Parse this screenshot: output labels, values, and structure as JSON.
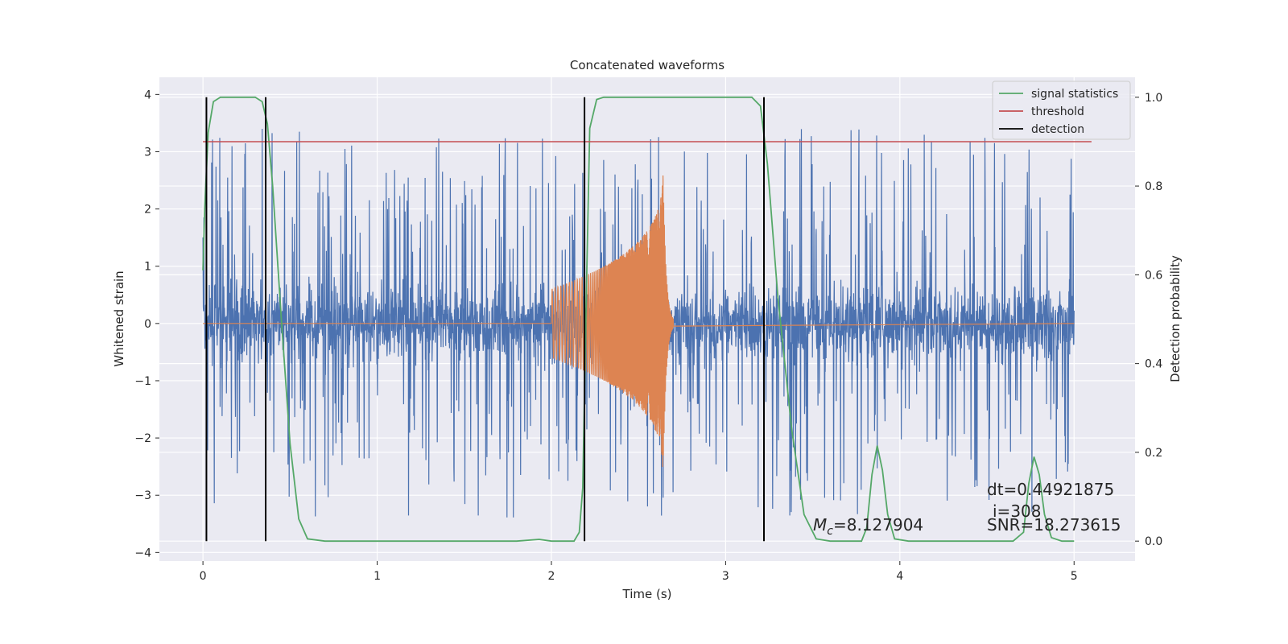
{
  "chart_data": {
    "type": "line",
    "title": "Concatenated waveforms",
    "xlabel": "Time (s)",
    "ylabel": "Whitened strain",
    "y2label": "Detection probability",
    "xlim": [
      -0.25,
      5.35
    ],
    "ylim": [
      -4.15,
      4.3
    ],
    "y2lim": [
      -0.045,
      1.045
    ],
    "x_ticks": [
      0,
      1,
      2,
      3,
      4,
      5
    ],
    "y_ticks": [
      4,
      3,
      2,
      1,
      0,
      -1,
      -2,
      -3,
      -4
    ],
    "y2_ticks": [
      1.0,
      0.8,
      0.6,
      0.4,
      0.2,
      0.0
    ],
    "y2_tick_labels": [
      "1.0",
      "0.8",
      "0.6",
      "0.4",
      "0.2",
      "0.0"
    ],
    "legend": {
      "position": "top-right",
      "entries": [
        {
          "label": "signal statistics",
          "color": "#55a868"
        },
        {
          "label": "threshold",
          "color": "#c44e52"
        },
        {
          "label": "detection",
          "color": "#000000"
        }
      ]
    },
    "series": [
      {
        "key": "strain",
        "kind": "noise",
        "color": "#4c72b0",
        "x_range": [
          0,
          5
        ],
        "inner_amplitude": 0.9,
        "peak_amplitude": 3.4
      },
      {
        "key": "template",
        "kind": "chirp",
        "color": "#dd8452",
        "x_range": [
          0,
          5
        ],
        "start": 2.0,
        "merger": 2.64,
        "amplitude_start": 0.6,
        "amplitude_peak": 2.9
      },
      {
        "name": "signal statistics",
        "color": "#55a868",
        "axis": "y2",
        "points": [
          [
            0.0,
            0.61
          ],
          [
            0.01,
            0.75
          ],
          [
            0.03,
            0.92
          ],
          [
            0.06,
            0.99
          ],
          [
            0.1,
            1.0
          ],
          [
            0.3,
            1.0
          ],
          [
            0.34,
            0.99
          ],
          [
            0.37,
            0.94
          ],
          [
            0.4,
            0.8
          ],
          [
            0.45,
            0.5
          ],
          [
            0.5,
            0.22
          ],
          [
            0.55,
            0.05
          ],
          [
            0.6,
            0.005
          ],
          [
            0.7,
            0.0
          ],
          [
            1.8,
            0.0
          ],
          [
            1.93,
            0.004
          ],
          [
            2.0,
            0.0
          ],
          [
            2.13,
            0.0
          ],
          [
            2.16,
            0.02
          ],
          [
            2.18,
            0.12
          ],
          [
            2.2,
            0.55
          ],
          [
            2.22,
            0.93
          ],
          [
            2.26,
            0.995
          ],
          [
            2.3,
            1.0
          ],
          [
            3.15,
            1.0
          ],
          [
            3.2,
            0.98
          ],
          [
            3.24,
            0.85
          ],
          [
            3.3,
            0.55
          ],
          [
            3.38,
            0.25
          ],
          [
            3.45,
            0.06
          ],
          [
            3.52,
            0.005
          ],
          [
            3.6,
            0.0
          ],
          [
            3.78,
            0.0
          ],
          [
            3.81,
            0.03
          ],
          [
            3.84,
            0.15
          ],
          [
            3.87,
            0.215
          ],
          [
            3.9,
            0.16
          ],
          [
            3.93,
            0.06
          ],
          [
            3.97,
            0.005
          ],
          [
            4.05,
            0.0
          ],
          [
            4.65,
            0.0
          ],
          [
            4.71,
            0.02
          ],
          [
            4.74,
            0.13
          ],
          [
            4.77,
            0.19
          ],
          [
            4.8,
            0.15
          ],
          [
            4.83,
            0.06
          ],
          [
            4.87,
            0.008
          ],
          [
            4.93,
            0.0
          ],
          [
            5.0,
            0.0
          ]
        ]
      },
      {
        "name": "threshold",
        "color": "#c44e52",
        "axis": "y2",
        "x": [
          0.0,
          5.1
        ],
        "value": 0.9
      },
      {
        "name": "detection",
        "color": "#000000",
        "axis": "y2",
        "x": [
          0.02,
          0.36,
          2.19,
          3.22
        ],
        "y_range": [
          0.0,
          1.0
        ]
      }
    ],
    "annotations": {
      "dt": "dt=0.44921875",
      "i": "i=308",
      "mc_symbol": "M",
      "mc_sub": "c",
      "mc_value": "=8.127904",
      "snr": "SNR=18.273615"
    }
  }
}
